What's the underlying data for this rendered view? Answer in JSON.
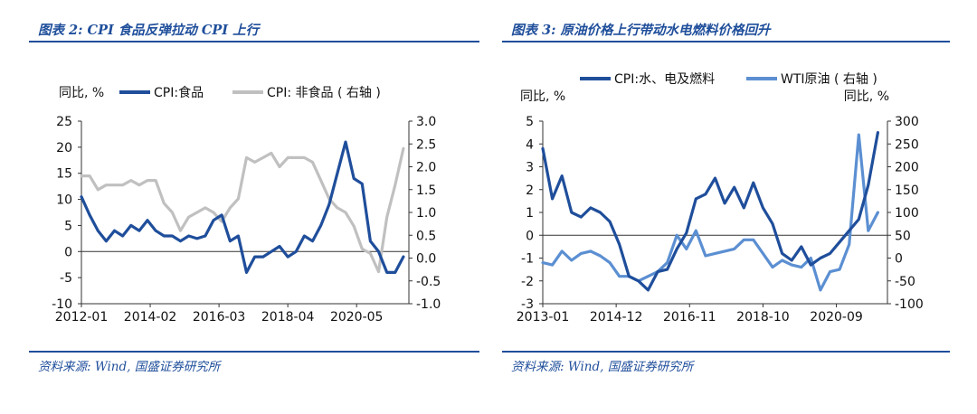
{
  "left": {
    "title": "图表 2:  CPI 食品反弹拉动 CPI 上行",
    "source": "资料来源:  Wind,  国盛证券研究所",
    "left_unit": "同比,  %",
    "legend": [
      "CPI:食品",
      "CPI:  非食品 ( 右轴 )"
    ],
    "colors": {
      "CPI:食品": "#1f4e9b",
      "CPI:  非食品 ( 右轴 )": "#c0c0c0"
    }
  },
  "right": {
    "title": "图表 3:  原油价格上行带动水电燃料价格回升",
    "source": "资料来源:  Wind,  国盛证券研究所",
    "left_unit": "同比,  %",
    "right_unit": "同比,  %",
    "legend": [
      "CPI:水、电及燃料",
      "WTI原油 ( 右轴 )"
    ],
    "colors": {
      "CPI:水、电及燃料": "#1f4e9b",
      "WTI原油 ( 右轴 )": "#5b8fd2"
    }
  },
  "chart_data": [
    {
      "type": "line",
      "title": "图表 2:  CPI 食品反弹拉动 CPI 上行",
      "x_ticks": [
        "2012-01",
        "2014-02",
        "2016-03",
        "2018-04",
        "2020-05"
      ],
      "x_range": [
        "2012-01",
        "2021-12"
      ],
      "y_left": {
        "label": "同比,  %",
        "range": [
          -10,
          25
        ],
        "ticks": [
          "-10",
          "-5",
          "0",
          "5",
          "10",
          "15",
          "20",
          "25"
        ]
      },
      "y_right": {
        "label": "",
        "range": [
          -1.0,
          3.0
        ],
        "ticks": [
          "-1.0",
          "-0.5",
          "0.0",
          "0.5",
          "1.0",
          "1.5",
          "2.0",
          "2.5",
          "3.0"
        ]
      },
      "legend_position": "top",
      "series": [
        {
          "name": "CPI:食品",
          "axis": "left",
          "x": [
            "2012-01",
            "2012-04",
            "2012-07",
            "2012-10",
            "2013-01",
            "2013-04",
            "2013-07",
            "2013-10",
            "2014-01",
            "2014-04",
            "2014-07",
            "2014-10",
            "2015-01",
            "2015-04",
            "2015-07",
            "2015-10",
            "2016-01",
            "2016-04",
            "2016-07",
            "2016-10",
            "2017-01",
            "2017-04",
            "2017-07",
            "2017-10",
            "2018-01",
            "2018-04",
            "2018-07",
            "2018-10",
            "2019-01",
            "2019-04",
            "2019-07",
            "2019-10",
            "2020-01",
            "2020-04",
            "2020-07",
            "2020-10",
            "2021-01",
            "2021-04",
            "2021-07",
            "2021-10"
          ],
          "values": [
            10.5,
            7,
            4,
            2,
            4,
            3,
            5,
            4,
            6,
            4,
            3,
            3,
            2,
            3,
            2.5,
            3,
            6,
            7,
            2,
            3,
            -4,
            -1,
            -1,
            0,
            1,
            -1,
            0,
            3,
            2,
            5,
            9,
            15,
            21,
            14,
            13,
            2,
            0,
            -4,
            -4,
            -1
          ]
        },
        {
          "name": "CPI:  非食品 ( 右轴 )",
          "axis": "right",
          "x": [
            "2012-01",
            "2012-04",
            "2012-07",
            "2012-10",
            "2013-01",
            "2013-04",
            "2013-07",
            "2013-10",
            "2014-01",
            "2014-04",
            "2014-07",
            "2014-10",
            "2015-01",
            "2015-04",
            "2015-07",
            "2015-10",
            "2016-01",
            "2016-04",
            "2016-07",
            "2016-10",
            "2017-01",
            "2017-04",
            "2017-07",
            "2017-10",
            "2018-01",
            "2018-04",
            "2018-07",
            "2018-10",
            "2019-01",
            "2019-04",
            "2019-07",
            "2019-10",
            "2020-01",
            "2020-04",
            "2020-07",
            "2020-10",
            "2021-01",
            "2021-04",
            "2021-07",
            "2021-10"
          ],
          "values": [
            1.8,
            1.8,
            1.5,
            1.6,
            1.6,
            1.6,
            1.7,
            1.6,
            1.7,
            1.7,
            1.2,
            1.0,
            0.6,
            0.9,
            1.0,
            1.1,
            1.0,
            0.8,
            1.1,
            1.3,
            2.2,
            2.1,
            2.2,
            2.3,
            2.0,
            2.2,
            2.2,
            2.2,
            2.1,
            1.7,
            1.3,
            1.1,
            1.0,
            0.7,
            0.2,
            0.1,
            -0.3,
            0.9,
            1.6,
            2.4
          ]
        }
      ]
    },
    {
      "type": "line",
      "title": "图表 3:  原油价格上行带动水电燃料价格回升",
      "x_ticks": [
        "2013-01",
        "2014-12",
        "2016-11",
        "2018-10",
        "2020-09"
      ],
      "x_range": [
        "2013-01",
        "2022-01"
      ],
      "y_left": {
        "label": "同比,  %",
        "range": [
          -3,
          5
        ],
        "ticks": [
          "-3",
          "-2",
          "-1",
          "0",
          "1",
          "2",
          "3",
          "4",
          "5"
        ]
      },
      "y_right": {
        "label": "同比,  %",
        "range": [
          -100,
          300
        ],
        "ticks": [
          "-100",
          "-50",
          "0",
          "50",
          "100",
          "150",
          "200",
          "250",
          "300"
        ]
      },
      "legend_position": "top",
      "series": [
        {
          "name": "CPI:水、电及燃料",
          "axis": "left",
          "x": [
            "2013-01",
            "2013-04",
            "2013-07",
            "2013-10",
            "2014-01",
            "2014-04",
            "2014-07",
            "2014-10",
            "2015-01",
            "2015-04",
            "2015-07",
            "2015-10",
            "2016-01",
            "2016-04",
            "2016-07",
            "2016-10",
            "2017-01",
            "2017-04",
            "2017-07",
            "2017-10",
            "2018-01",
            "2018-04",
            "2018-07",
            "2018-10",
            "2019-01",
            "2019-04",
            "2019-07",
            "2019-10",
            "2020-01",
            "2020-04",
            "2020-07",
            "2020-10",
            "2021-01",
            "2021-04",
            "2021-07",
            "2021-10"
          ],
          "values": [
            3.8,
            1.6,
            2.6,
            1.0,
            0.8,
            1.2,
            1.0,
            0.6,
            -0.4,
            -1.8,
            -2.0,
            -2.4,
            -1.6,
            -1.5,
            -0.6,
            0.1,
            1.6,
            1.8,
            2.5,
            1.4,
            2.1,
            1.2,
            2.3,
            1.2,
            0.5,
            -0.8,
            -1.1,
            -0.5,
            -1.3,
            -1.0,
            -0.8,
            -0.3,
            0.2,
            0.7,
            2.2,
            4.5
          ]
        },
        {
          "name": "WTI原油 ( 右轴 )",
          "axis": "right",
          "x": [
            "2013-01",
            "2013-04",
            "2013-07",
            "2013-10",
            "2014-01",
            "2014-04",
            "2014-07",
            "2014-10",
            "2015-01",
            "2015-04",
            "2015-07",
            "2015-10",
            "2016-01",
            "2016-04",
            "2016-07",
            "2016-10",
            "2017-01",
            "2017-04",
            "2017-07",
            "2017-10",
            "2018-01",
            "2018-04",
            "2018-07",
            "2018-10",
            "2019-01",
            "2019-04",
            "2019-07",
            "2019-10",
            "2020-01",
            "2020-04",
            "2020-07",
            "2020-10",
            "2021-01",
            "2021-04",
            "2021-07",
            "2021-10"
          ],
          "values": [
            -10,
            -15,
            15,
            -5,
            10,
            15,
            5,
            -10,
            -40,
            -40,
            -50,
            -40,
            -30,
            -10,
            50,
            20,
            60,
            5,
            10,
            15,
            20,
            40,
            40,
            10,
            -20,
            -5,
            -15,
            -20,
            0,
            -70,
            -30,
            -25,
            30,
            270,
            60,
            100
          ]
        }
      ]
    }
  ]
}
